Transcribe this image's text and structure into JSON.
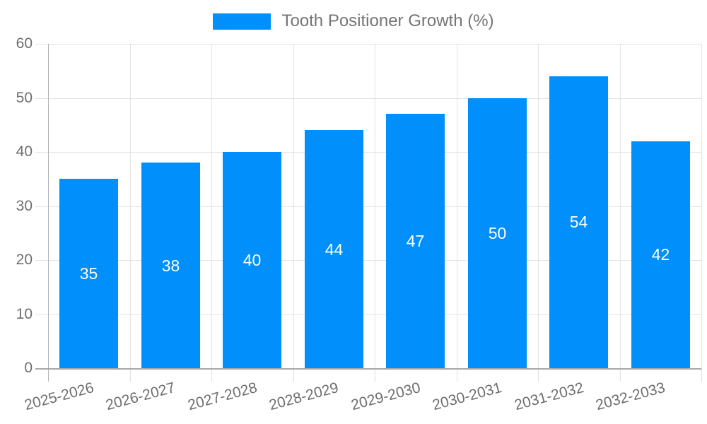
{
  "chart_data": {
    "type": "bar",
    "title": "Tooth Positioner Growth (%)",
    "categories": [
      "2025-2026",
      "2026-2027",
      "2027-2028",
      "2028-2029",
      "2029-2030",
      "2030-2031",
      "2031-2032",
      "2032-2033"
    ],
    "values": [
      35,
      38,
      40,
      44,
      47,
      50,
      54,
      42
    ],
    "xlabel": "",
    "ylabel": "",
    "ylim": [
      0,
      60
    ],
    "y_ticks": [
      0,
      10,
      20,
      30,
      40,
      50,
      60
    ],
    "grid": true,
    "legend_position": "top",
    "colors": {
      "bar": "#008FFB",
      "bar_value_text": "#ffffff",
      "gridline": "#e3e3e3",
      "tick": "#dedede",
      "x_axis_line": "#a8a8a8",
      "y_axis_line": "#b5b5b5",
      "axis_text": "#6e6e6e",
      "legend_text": "#757575"
    }
  }
}
